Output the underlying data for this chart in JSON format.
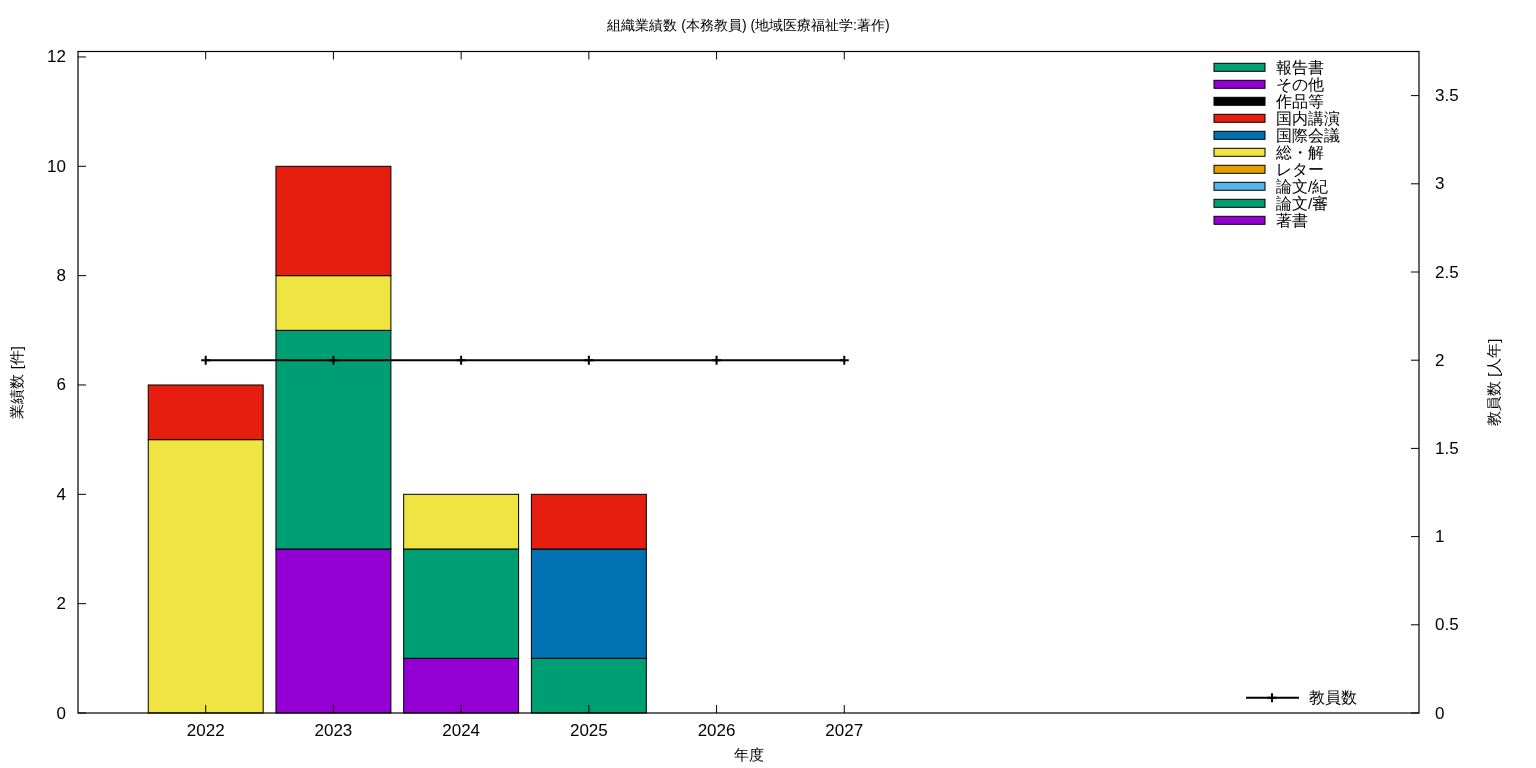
{
  "chart_data": {
    "type": "bar",
    "title": "組織業績数 (本務教員) (地域医療福祉学:著作)",
    "xlabel": "年度",
    "ylabel": "業績数 [件]",
    "y2label": "教員数 [人年]",
    "x": [
      2022,
      2023,
      2024,
      2025,
      2026,
      2027
    ],
    "series": [
      {
        "name": "著書",
        "color": "#9400d3",
        "values": [
          0,
          3,
          1,
          0,
          0,
          0
        ]
      },
      {
        "name": "論文/審",
        "color": "#009e73",
        "values": [
          0,
          4,
          2,
          1,
          0,
          0
        ]
      },
      {
        "name": "論文/紀",
        "color": "#56b4e9",
        "values": [
          0,
          0,
          0,
          0,
          0,
          0
        ]
      },
      {
        "name": "レター",
        "color": "#e69f00",
        "values": [
          0,
          0,
          0,
          0,
          0,
          0
        ]
      },
      {
        "name": "総・解",
        "color": "#f0e442",
        "values": [
          5,
          1,
          1,
          0,
          0,
          0
        ]
      },
      {
        "name": "国際会議",
        "color": "#0072b2",
        "values": [
          0,
          0,
          0,
          2,
          0,
          0
        ]
      },
      {
        "name": "国内講演",
        "color": "#e51e10",
        "values": [
          1,
          2,
          0,
          1,
          0,
          0
        ]
      },
      {
        "name": "作品等",
        "color": "#000000",
        "values": [
          0,
          0,
          0,
          0,
          0,
          0
        ]
      },
      {
        "name": "その他",
        "color": "#9400d3",
        "values": [
          0,
          0,
          0,
          0,
          0,
          0
        ]
      },
      {
        "name": "報告書",
        "color": "#009e73",
        "values": [
          0,
          0,
          0,
          0,
          0,
          0
        ]
      },
      {
        "name": "教員数",
        "type": "line",
        "axis": "y2",
        "color": "#000000",
        "values": [
          2,
          2,
          2,
          2,
          2,
          2
        ]
      }
    ],
    "stacked": true,
    "xlim": [
      2021,
      2031.5
    ],
    "xticks": [
      2022,
      2023,
      2024,
      2025,
      2026,
      2027
    ],
    "ylim": [
      0,
      12.1
    ],
    "yticks": [
      0,
      2,
      4,
      6,
      8,
      10,
      12
    ],
    "y2lim": [
      0,
      3.75
    ],
    "y2ticks": [
      0,
      0.5,
      1,
      1.5,
      2,
      2.5,
      3,
      3.5
    ],
    "legend": "right",
    "marker": "cross"
  }
}
